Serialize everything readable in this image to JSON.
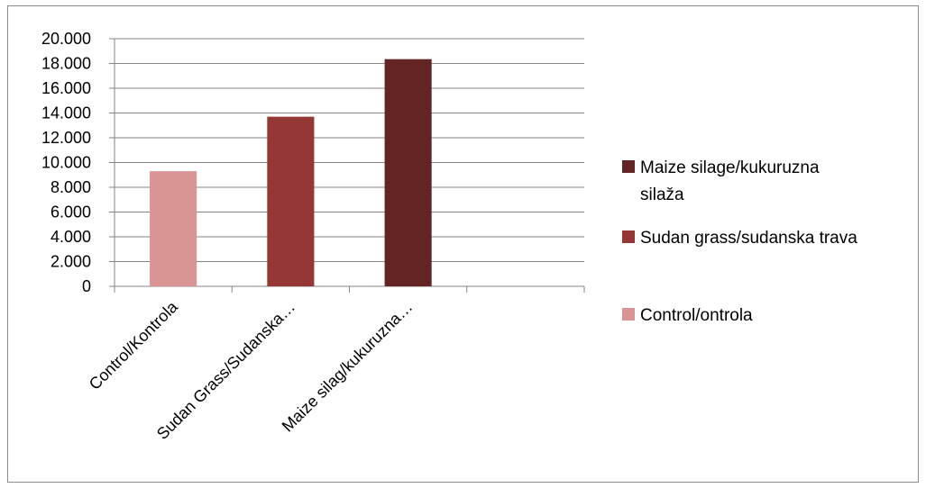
{
  "chart_data": {
    "type": "bar",
    "title": "",
    "xlabel": "",
    "ylabel": "",
    "ylim": [
      0,
      20000
    ],
    "ytick_step": 2000,
    "yticks": [
      "0",
      "2.000",
      "4.000",
      "6.000",
      "8.000",
      "10.000",
      "12.000",
      "14.000",
      "16.000",
      "18.000",
      "20.000"
    ],
    "grid": true,
    "legend_position": "right",
    "categories": [
      "Control/Kontrola",
      "Sudan Grass/Sudanska…",
      "Maize silag/kukuruzna…",
      ""
    ],
    "values": [
      9300,
      13700,
      18350,
      null
    ],
    "bar_colors": [
      "#D99594",
      "#953735",
      "#632523",
      null
    ],
    "legend": [
      {
        "lines": [
          "Maize silage/kukuruzna",
          "silaža"
        ],
        "color": "#632523"
      },
      {
        "lines": [
          "Sudan grass/sudanska trava"
        ],
        "color": "#953735"
      },
      {
        "lines": [
          "Control/ontrola"
        ],
        "color": "#D99594"
      }
    ]
  }
}
